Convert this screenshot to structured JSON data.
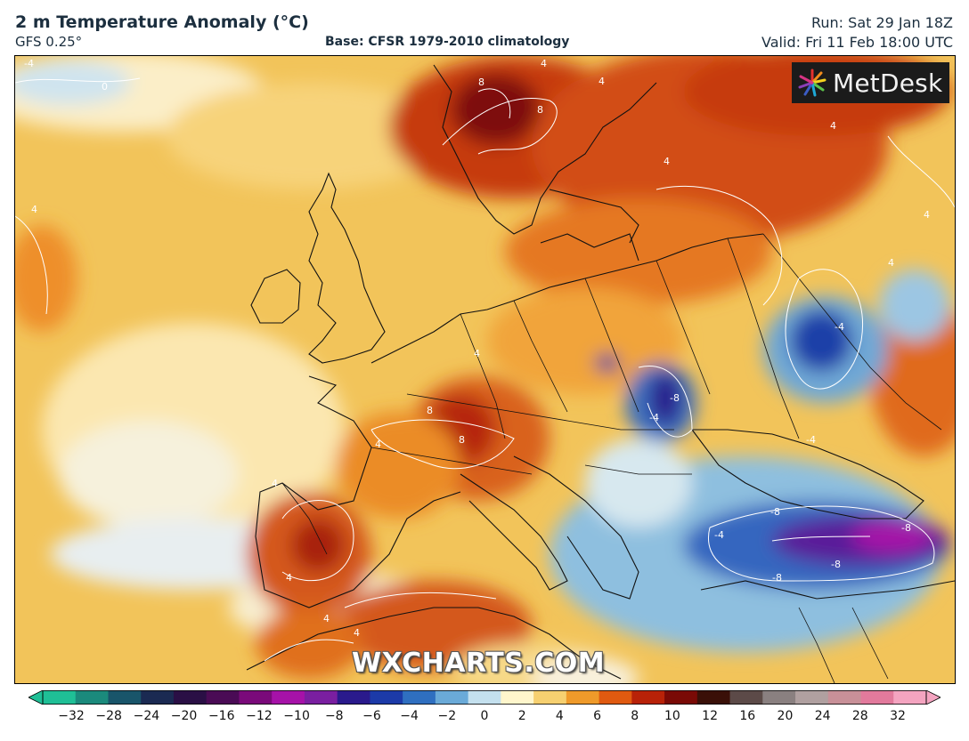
{
  "header": {
    "title": "2 m Temperature Anomaly (°C)",
    "model": "GFS 0.25°",
    "base": "Base: CFSR 1979-2010 climatology",
    "run": "Run: Sat 29 Jan 18Z",
    "valid": "Valid: Fri 11 Feb 18:00 UTC"
  },
  "logo": {
    "text": "MetDesk",
    "icon": "metdesk-sunburst-icon"
  },
  "watermark": "WXCHARTS.COM",
  "colorbar": {
    "ticks": [
      "−32",
      "−28",
      "−24",
      "−20",
      "−16",
      "−12",
      "−10",
      "−8",
      "−6",
      "−4",
      "−2",
      "0",
      "2",
      "4",
      "6",
      "8",
      "10",
      "12",
      "16",
      "20",
      "24",
      "28",
      "32"
    ],
    "colors": [
      "#1fbf96",
      "#1b8a7c",
      "#19556a",
      "#1b2a52",
      "#2a0f45",
      "#4a0b55",
      "#7a0a7a",
      "#a612a8",
      "#7a1fa0",
      "#2a1a8c",
      "#1c3aa8",
      "#2f6fc0",
      "#6aaad8",
      "#c4e0ee",
      "#fff6cc",
      "#f6d070",
      "#ef9a2a",
      "#e05a10",
      "#b82208",
      "#7a0a06",
      "#3a1008",
      "#5c4a48",
      "#8a8080",
      "#b0a0a0",
      "#c89098",
      "#e27a9c",
      "#f4a4c0"
    ]
  },
  "contour_labels": [
    "-4",
    "0",
    "4",
    "8",
    "4",
    "4",
    "4",
    "4",
    "4",
    "4",
    "-4",
    "-4",
    "-8",
    "-4",
    "-8",
    "-4",
    "-8",
    "4",
    "8",
    "4",
    "4",
    "4",
    "8",
    "-8",
    "-8",
    "8",
    "4",
    "4"
  ]
}
